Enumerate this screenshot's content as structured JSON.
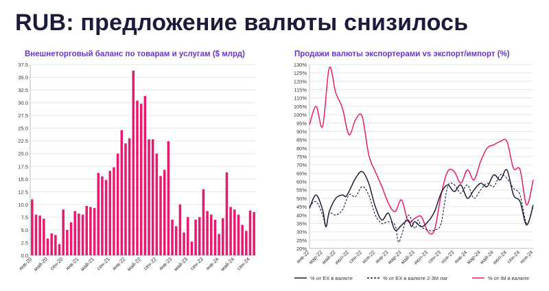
{
  "page": {
    "title": "RUB: предложение валюты снизилось"
  },
  "colors": {
    "bar": "#e8196e",
    "line_solid": "#1b1c3a",
    "line_dashed": "#1b1c3a",
    "line_pink": "#e8196e",
    "chart_title": "#6a35c9"
  },
  "chart_data": [
    {
      "type": "bar",
      "title": "Внешнеторговый баланс по товарам и услугам ($ млрд)",
      "ylim": [
        0,
        37.5
      ],
      "yticks": [
        "0.0",
        "2.5",
        "5.0",
        "7.5",
        "10.0",
        "12.5",
        "15.0",
        "17.5",
        "20.0",
        "22.5",
        "25.0",
        "27.5",
        "30.0",
        "32.5",
        "35.0",
        "37.5"
      ],
      "tick_labels": [
        "янв-20",
        "май-20",
        "сен-20",
        "янв-21",
        "май-21",
        "сен-21",
        "янв-22",
        "май-22",
        "сен-22",
        "янв-23",
        "май-23",
        "сен-23",
        "янв-24",
        "май-24",
        "сен-24"
      ],
      "values": [
        11.0,
        8.0,
        7.8,
        7.2,
        3.3,
        4.3,
        4.0,
        2.2,
        9.0,
        5.0,
        6.5,
        8.7,
        8.2,
        8.0,
        9.7,
        9.5,
        9.3,
        16.2,
        15.5,
        14.8,
        16.6,
        17.3,
        20.0,
        24.6,
        22.0,
        23.0,
        36.3,
        30.4,
        29.8,
        31.3,
        22.8,
        22.8,
        20.0,
        15.6,
        16.8,
        22.4,
        7.0,
        5.7,
        10.0,
        4.5,
        7.5,
        2.7,
        7.0,
        7.5,
        13.0,
        8.7,
        8.0,
        7.0,
        4.2,
        7.3,
        16.3,
        9.5,
        9.0,
        8.0,
        6.0,
        4.8,
        8.8,
        8.5
      ]
    },
    {
      "type": "line",
      "title": "Продажи валюты экспортерами vs экспорт/импорт (%)",
      "ylim": [
        20,
        130
      ],
      "yticks": [
        "20%",
        "25%",
        "30%",
        "35%",
        "40%",
        "45%",
        "50%",
        "55%",
        "60%",
        "65%",
        "70%",
        "75%",
        "80%",
        "85%",
        "90%",
        "95%",
        "100%",
        "105%",
        "110%",
        "115%",
        "120%",
        "125%",
        "130%"
      ],
      "tick_labels": [
        "янв-22",
        "мар-22",
        "май-22",
        "июл-22",
        "сен-22",
        "ноя-22",
        "янв-23",
        "мар-23",
        "май-23",
        "июл-23",
        "сен-23",
        "ноя-23",
        "янв-24",
        "мар-24",
        "май-24",
        "июл-24",
        "сен-24",
        "ноя-24"
      ],
      "tick_months": [
        0,
        2,
        4,
        6,
        8,
        10,
        12,
        14,
        16,
        18,
        20,
        22,
        24,
        26,
        28,
        30,
        32,
        34
      ],
      "series": [
        {
          "name": "% от EX в валюте",
          "style": "solid",
          "color": "#1b1c3a",
          "x": [
            0,
            1,
            2,
            2.5,
            3,
            4,
            5,
            5.5,
            6,
            7,
            8,
            9,
            10,
            11,
            12,
            13,
            14,
            15,
            15.5,
            16,
            17,
            18,
            19,
            20,
            21,
            22,
            23,
            24,
            25,
            26,
            27,
            28,
            29,
            30,
            31,
            32,
            33,
            34
          ],
          "y": [
            44,
            52,
            43,
            33,
            42,
            50,
            52,
            51,
            54,
            62,
            66,
            59,
            45,
            37,
            41,
            31,
            34,
            37,
            33,
            36,
            33,
            36,
            42,
            53,
            58,
            54,
            58,
            50,
            55,
            59,
            57,
            64,
            61,
            67,
            52,
            48,
            34,
            46
          ]
        },
        {
          "name": "% от EX в валюте 2-3М лаг",
          "style": "dashed",
          "color": "#1b1c3a",
          "x": [
            0,
            1,
            2,
            2.5,
            3,
            4,
            5,
            6,
            7,
            8,
            9,
            10,
            11,
            12,
            13,
            13.5,
            14,
            15,
            16,
            16.5,
            17,
            18,
            19,
            20,
            21,
            22,
            23,
            24,
            25,
            26,
            27,
            28,
            29,
            30,
            31,
            32,
            33,
            34
          ],
          "y": [
            45,
            48,
            40,
            33,
            41,
            40,
            43,
            52,
            51,
            57,
            52,
            40,
            35,
            36,
            34,
            24,
            28,
            40,
            32,
            37,
            33,
            31,
            31,
            35,
            57,
            58,
            53,
            58,
            50,
            55,
            59,
            57,
            64,
            62,
            56,
            52,
            35,
            45
          ]
        },
        {
          "name": "% от IM в валюте",
          "style": "solid",
          "color": "#e8196e",
          "x": [
            0,
            1,
            2,
            3,
            4,
            5,
            6,
            7,
            8,
            9,
            10,
            11,
            12,
            13,
            14,
            15,
            16,
            17,
            18,
            19,
            20,
            21,
            22,
            23,
            24,
            25,
            26,
            27,
            28,
            29,
            30,
            31,
            32,
            33,
            34
          ],
          "y": [
            94,
            105,
            93,
            128,
            113,
            104,
            88,
            97,
            99,
            76,
            66,
            57,
            47,
            42,
            49,
            36,
            38,
            39,
            30,
            31,
            52,
            66,
            66,
            59,
            67,
            61,
            72,
            80,
            82,
            84,
            84,
            68,
            67,
            46,
            61
          ]
        }
      ]
    }
  ]
}
